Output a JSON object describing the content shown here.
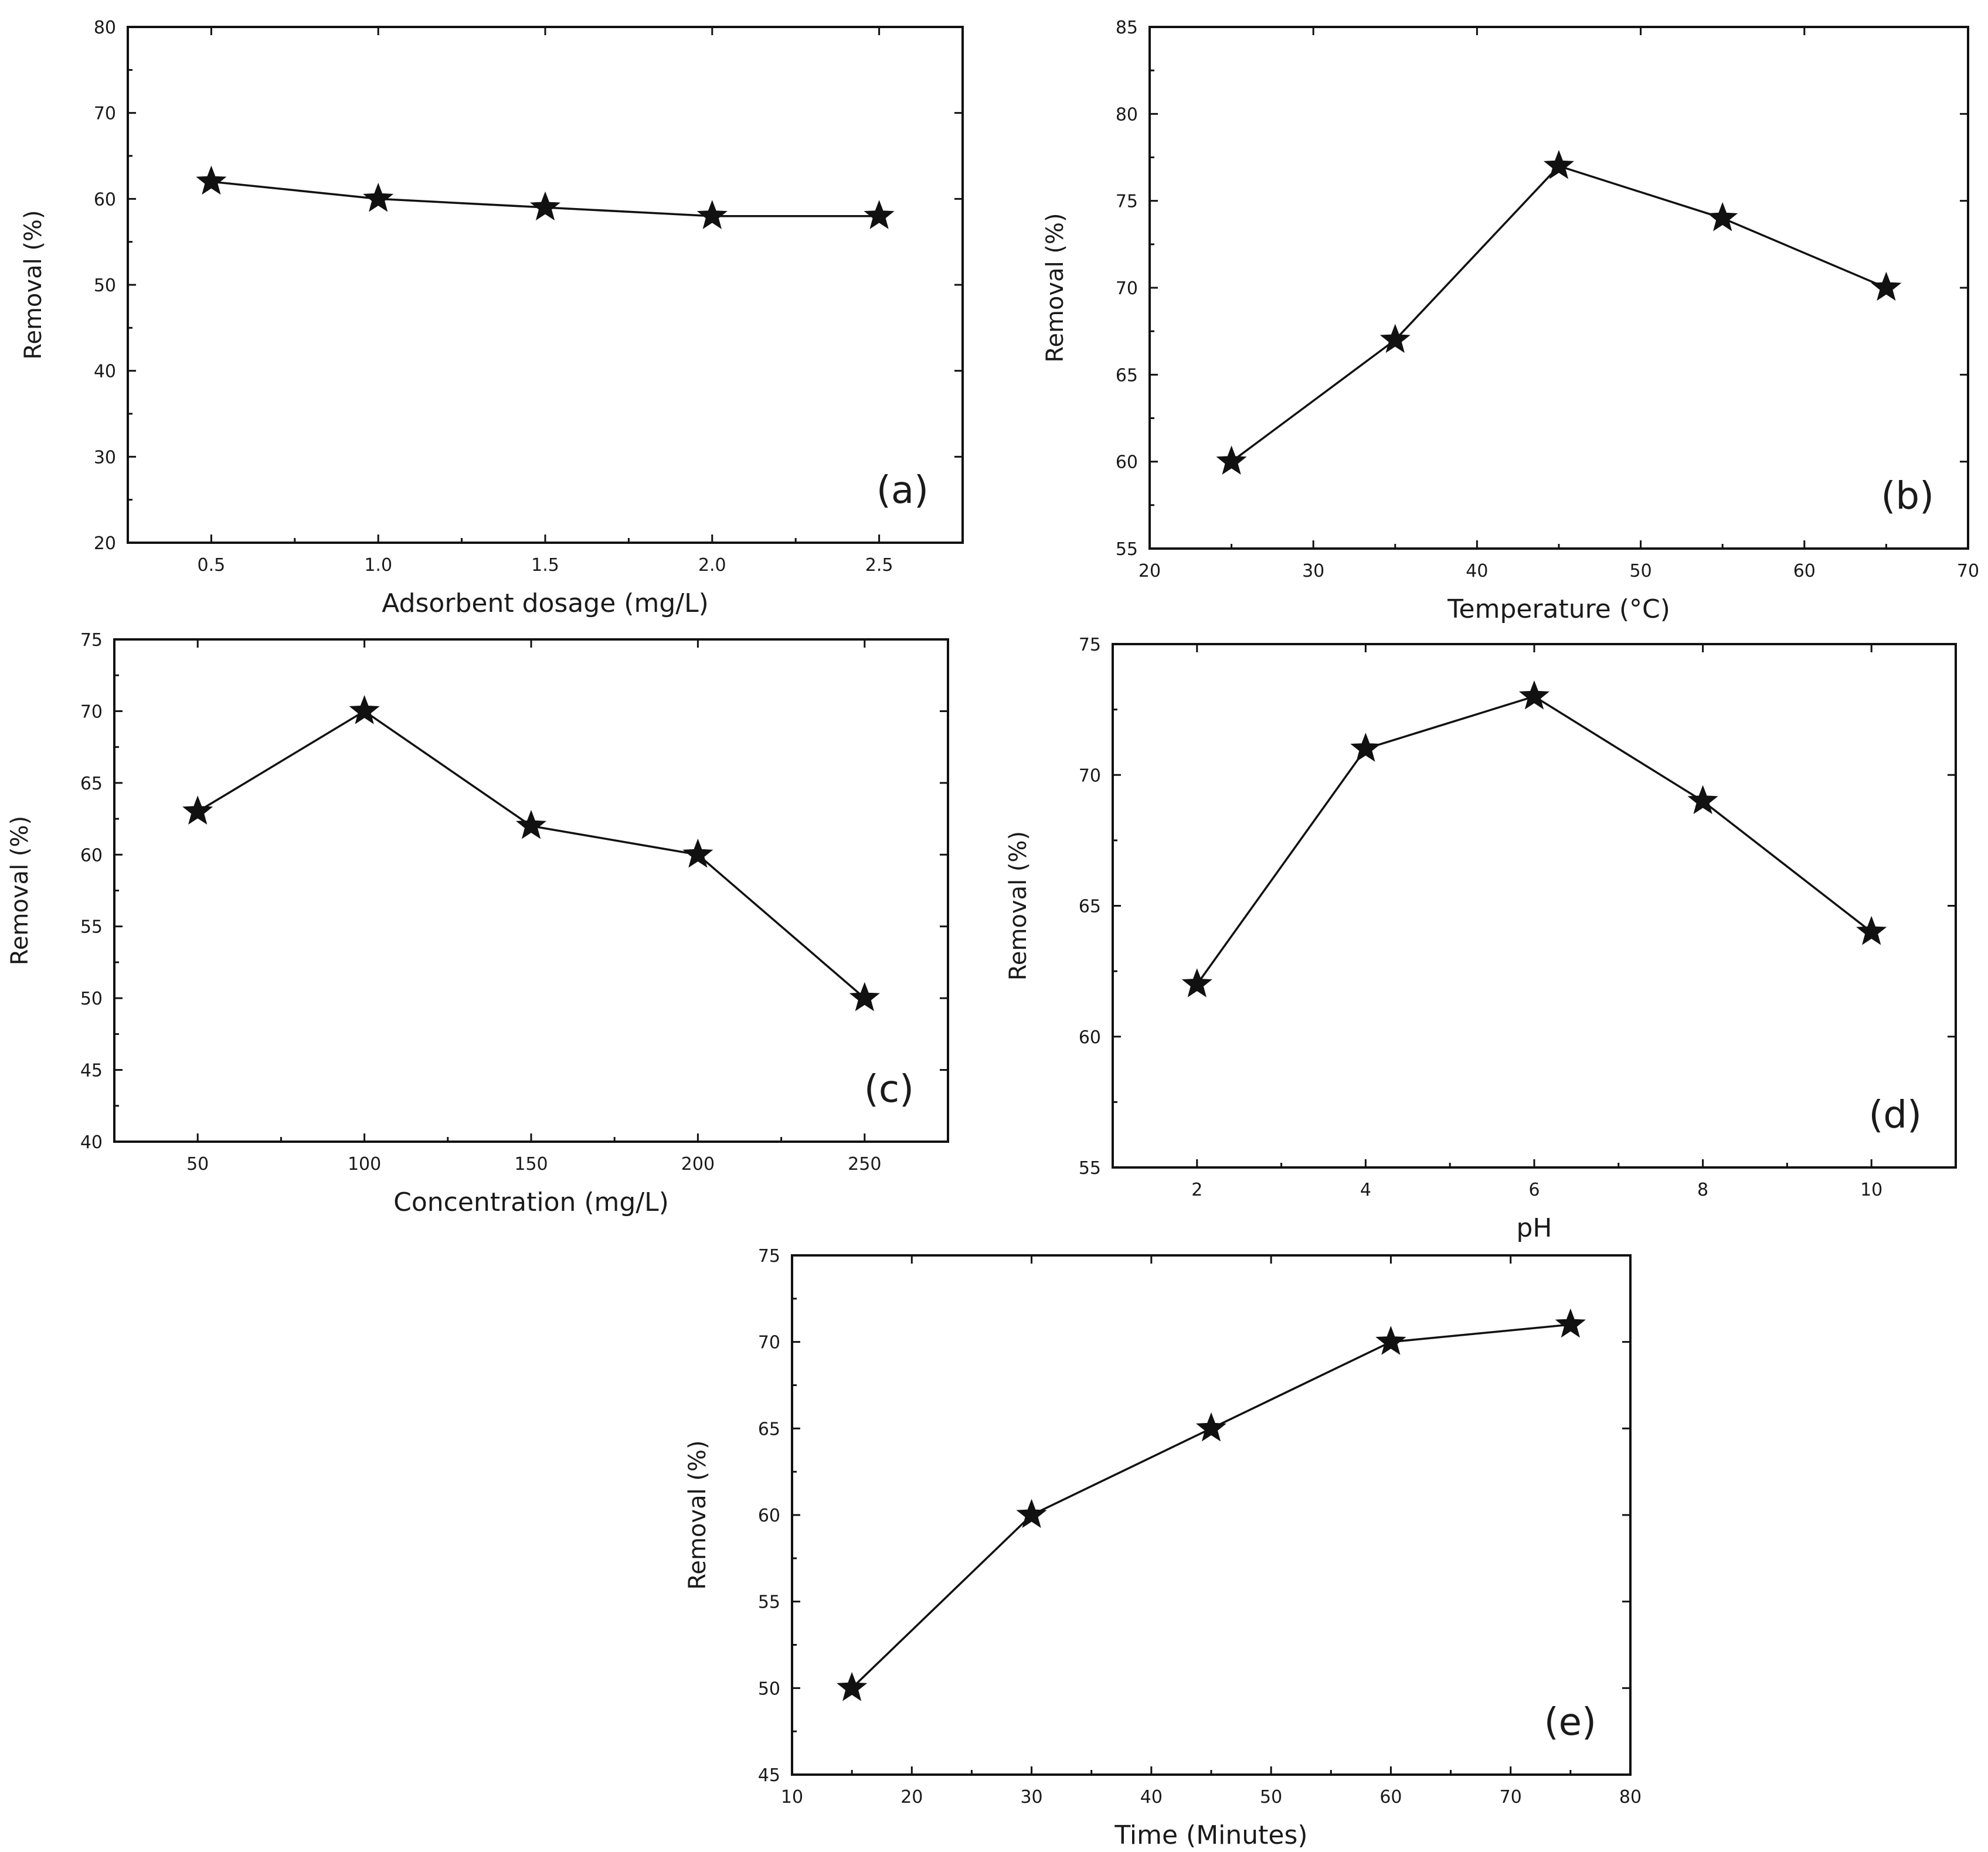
{
  "chart_data": [
    {
      "id": "a",
      "type": "line",
      "panel_label": "(a)",
      "xlabel": "Adsorbent dosage (mg/L)",
      "ylabel": "Removal (%)",
      "xlim": [
        0.25,
        2.75
      ],
      "ylim": [
        20,
        80
      ],
      "xticks": [
        0.5,
        1.0,
        1.5,
        2.0,
        2.5
      ],
      "xtick_labels": [
        "0.5",
        "1.0",
        "1.5",
        "2.0",
        "2.5"
      ],
      "yticks": [
        20,
        30,
        40,
        50,
        60,
        70,
        80
      ],
      "ytick_labels": [
        "20",
        "30",
        "40",
        "50",
        "60",
        "70",
        "80"
      ],
      "marker": "star",
      "x": [
        0.5,
        1.0,
        1.5,
        2.0,
        2.5
      ],
      "y": [
        62,
        60,
        59,
        58,
        58
      ]
    },
    {
      "id": "b",
      "type": "line",
      "panel_label": "(b)",
      "xlabel": "Temperature (°C)",
      "ylabel": "Removal (%)",
      "xlim": [
        20,
        70
      ],
      "ylim": [
        55,
        85
      ],
      "xticks": [
        20,
        30,
        40,
        50,
        60,
        70
      ],
      "xtick_labels": [
        "20",
        "30",
        "40",
        "50",
        "60",
        "70"
      ],
      "yticks": [
        55,
        60,
        65,
        70,
        75,
        80,
        85
      ],
      "ytick_labels": [
        "55",
        "60",
        "65",
        "70",
        "75",
        "80",
        "85"
      ],
      "marker": "star",
      "x": [
        25,
        35,
        45,
        55,
        65
      ],
      "y": [
        60,
        67,
        77,
        74,
        70
      ]
    },
    {
      "id": "c",
      "type": "line",
      "panel_label": "(c)",
      "xlabel": "Concentration (mg/L)",
      "ylabel": "Removal (%)",
      "xlim": [
        25,
        275
      ],
      "ylim": [
        40,
        75
      ],
      "xticks": [
        50,
        100,
        150,
        200,
        250
      ],
      "xtick_labels": [
        "50",
        "100",
        "150",
        "200",
        "250"
      ],
      "yticks": [
        40,
        45,
        50,
        55,
        60,
        65,
        70,
        75
      ],
      "ytick_labels": [
        "40",
        "45",
        "50",
        "55",
        "60",
        "65",
        "70",
        "75"
      ],
      "marker": "star",
      "x": [
        50,
        100,
        150,
        200,
        250
      ],
      "y": [
        63,
        70,
        62,
        60,
        50
      ]
    },
    {
      "id": "d",
      "type": "line",
      "panel_label": "(d)",
      "xlabel": "pH",
      "ylabel": "Removal (%)",
      "xlim": [
        1,
        11
      ],
      "ylim": [
        55,
        75
      ],
      "xticks": [
        2,
        4,
        6,
        8,
        10
      ],
      "xtick_labels": [
        "2",
        "4",
        "6",
        "8",
        "10"
      ],
      "yticks": [
        55,
        60,
        65,
        70,
        75
      ],
      "ytick_labels": [
        "55",
        "60",
        "65",
        "70",
        "75"
      ],
      "marker": "star",
      "x": [
        2,
        4,
        6,
        8,
        10
      ],
      "y": [
        62,
        71,
        73,
        69,
        64
      ]
    },
    {
      "id": "e",
      "type": "line",
      "panel_label": "(e)",
      "xlabel": "Time (Minutes)",
      "ylabel": "Removal (%)",
      "xlim": [
        10,
        80
      ],
      "ylim": [
        45,
        75
      ],
      "xticks": [
        10,
        20,
        30,
        40,
        50,
        60,
        70,
        80
      ],
      "xtick_labels": [
        "10",
        "20",
        "30",
        "40",
        "50",
        "60",
        "70",
        "80"
      ],
      "yticks": [
        45,
        50,
        55,
        60,
        65,
        70,
        75
      ],
      "ytick_labels": [
        "45",
        "50",
        "55",
        "60",
        "65",
        "70",
        "75"
      ],
      "marker": "star",
      "x": [
        15,
        30,
        45,
        60,
        75
      ],
      "y": [
        50,
        60,
        65,
        70,
        71
      ]
    }
  ]
}
